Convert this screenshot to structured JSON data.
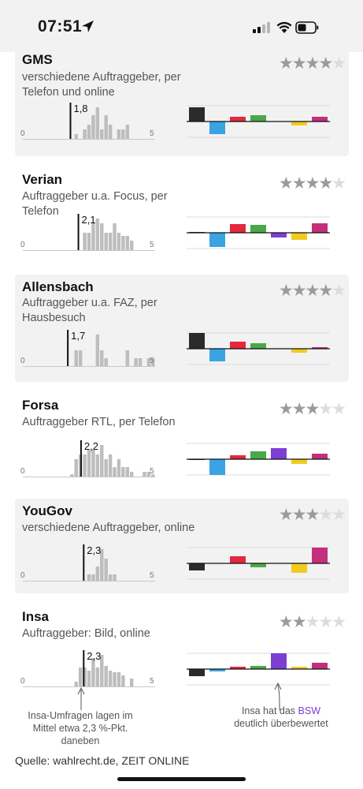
{
  "status_bar": {
    "time": "07:51"
  },
  "colors": {
    "bar_hist": "#bdbdbd",
    "star_on": "#9b9b9b",
    "star_off": "#dcdcdc",
    "cdu": "#2b2b2b",
    "spd": "#e3293c",
    "afd": "#3aa3e3",
    "gruene": "#4aa84a",
    "fdp": "#f0cc20",
    "linke": "#c32f7a",
    "bsw": "#7b3fd4"
  },
  "institutes": [
    {
      "name": "GMS",
      "subtitle": "verschiedene Auftraggeber, per Telefon und online",
      "rating": 4,
      "mean_label": "1,8",
      "mean": 1.8,
      "hist": [
        0,
        0,
        0,
        0,
        0,
        0,
        0,
        0,
        0,
        0,
        0,
        0,
        0.15,
        0,
        0.3,
        0.45,
        0.75,
        1.0,
        0.3,
        0.75,
        0.45,
        0,
        0.3,
        0.3,
        0.45,
        0,
        0,
        0,
        0,
        0,
        0
      ],
      "deviations": {
        "CDU": 0.9,
        "AfD": -0.8,
        "SPD": 0.3,
        "Grüne": 0.4,
        "BSW": 0,
        "FDP": -0.25,
        "Linke": 0.3
      }
    },
    {
      "name": "Verian",
      "subtitle": "Auftraggeber u.a. Focus, per Telefon",
      "rating": 4,
      "mean_label": "2,1",
      "mean": 2.1,
      "hist": [
        0,
        0,
        0,
        0,
        0,
        0,
        0,
        0,
        0,
        0,
        0,
        0,
        0,
        0,
        0.55,
        0.55,
        0.85,
        1.0,
        0.85,
        0.55,
        0.55,
        0.85,
        0.55,
        0.45,
        0.45,
        0.3,
        0,
        0,
        0,
        0,
        0
      ],
      "deviations": {
        "CDU": 0.05,
        "AfD": -0.9,
        "SPD": 0.55,
        "Grüne": 0.5,
        "BSW": -0.3,
        "FDP": -0.45,
        "Linke": 0.6
      }
    },
    {
      "name": "Allensbach",
      "subtitle": "Auftraggeber u.a. FAZ, per Hausbesuch",
      "rating": 4,
      "mean_label": "1,7",
      "mean": 1.7,
      "hist": [
        0,
        0,
        0,
        0,
        0,
        0,
        0,
        0,
        0,
        0,
        0,
        0,
        0.5,
        0.5,
        0,
        0,
        0,
        1.0,
        0.5,
        0.25,
        0,
        0,
        0,
        0,
        0.5,
        0,
        0.25,
        0.25,
        0,
        0.25,
        0.25
      ],
      "deviations": {
        "CDU": 1.0,
        "AfD": -0.8,
        "SPD": 0.45,
        "Grüne": 0.35,
        "BSW": 0,
        "FDP": -0.25,
        "Linke": 0.1
      }
    },
    {
      "name": "Forsa",
      "subtitle": "Auftraggeber RTL, per Telefon",
      "rating": 3,
      "mean_label": "2,2",
      "mean": 2.2,
      "hist": [
        0,
        0,
        0,
        0,
        0,
        0,
        0,
        0,
        0,
        0,
        0,
        0.07,
        0.55,
        0.7,
        0.7,
        0.85,
        0.85,
        0.7,
        1.0,
        0.55,
        0.7,
        0.3,
        0.55,
        0.3,
        0.3,
        0.15,
        0,
        0,
        0.15,
        0.15,
        0.07
      ],
      "deviations": {
        "CDU": -0.05,
        "AfD": -1.0,
        "SPD": 0.25,
        "Grüne": 0.5,
        "BSW": 0.7,
        "FDP": -0.3,
        "Linke": 0.35
      }
    },
    {
      "name": "YouGov",
      "subtitle": "verschiedene Auftraggeber, online",
      "rating": 3,
      "mean_label": "2,3",
      "mean": 2.3,
      "hist": [
        0,
        0,
        0,
        0,
        0,
        0,
        0,
        0,
        0,
        0,
        0,
        0,
        0,
        0,
        0,
        0.2,
        0.2,
        0.45,
        1.0,
        0.7,
        0.2,
        0.2,
        0,
        0,
        0,
        0,
        0,
        0,
        0,
        0,
        0
      ],
      "deviations": {
        "CDU": -0.45,
        "AfD": 0,
        "SPD": 0.45,
        "Grüne": -0.25,
        "BSW": 0,
        "FDP": -0.6,
        "Linke": 1.0
      }
    },
    {
      "name": "Insa",
      "subtitle": "Auftraggeber: Bild, online",
      "rating": 2,
      "mean_label": "2,3",
      "mean": 2.3,
      "hist": [
        0,
        0,
        0,
        0,
        0,
        0,
        0,
        0,
        0,
        0,
        0,
        0,
        0.15,
        0.6,
        0.6,
        0.5,
        0.9,
        0.6,
        1.0,
        0.65,
        0.5,
        0.45,
        0.45,
        0.35,
        0,
        0.25,
        0,
        0,
        0,
        0,
        0
      ],
      "deviations": {
        "CDU": -0.45,
        "AfD": -0.15,
        "SPD": 0.15,
        "Grüne": 0.2,
        "BSW": 1.0,
        "FDP": 0.15,
        "Linke": 0.4
      }
    }
  ],
  "axis": {
    "min_label": "0",
    "max_label": "5"
  },
  "annotations": {
    "left": "Insa-Umfragen lagen im Mittel etwa 2,3 %-Pkt. daneben",
    "right_prefix": "Insa hat das",
    "right_party": "BSW",
    "right_suffix": "deutlich überbewertet"
  },
  "source": "Quelle: wahlrecht.de, ZEIT ONLINE"
}
